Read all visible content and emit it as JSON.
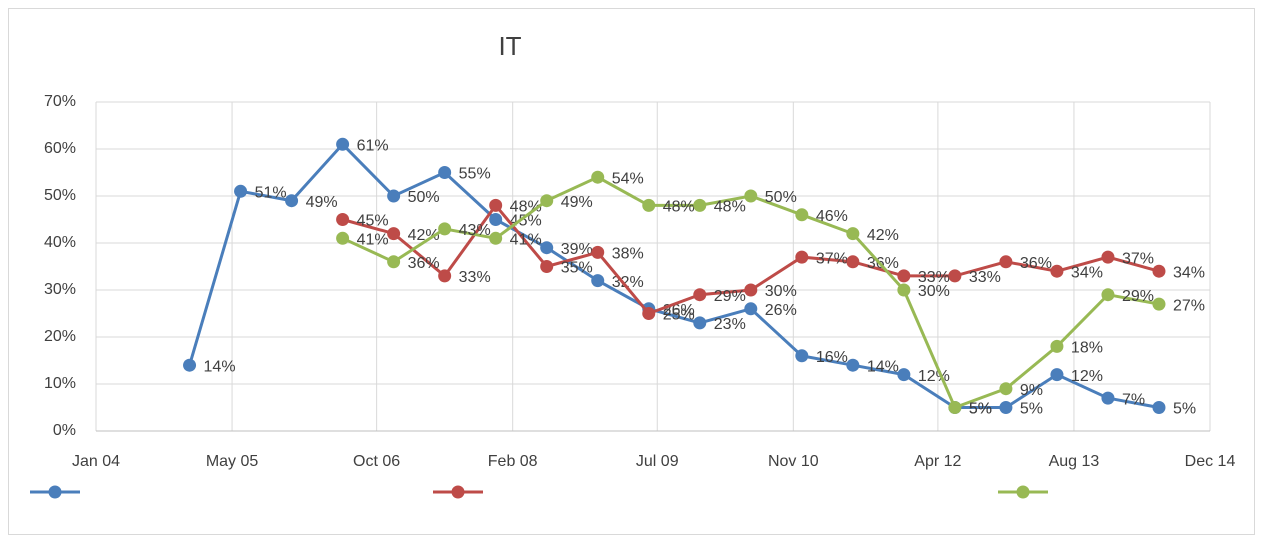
{
  "chart_data": {
    "type": "line",
    "title": "IT",
    "xlim": [
      "2004-01",
      "2014-12"
    ],
    "xticks": [
      {
        "value": "2004-01",
        "label": "Jan 04"
      },
      {
        "value": "2005-05",
        "label": "May 05"
      },
      {
        "value": "2006-10",
        "label": "Oct 06"
      },
      {
        "value": "2008-02",
        "label": "Feb 08"
      },
      {
        "value": "2009-07",
        "label": "Jul 09"
      },
      {
        "value": "2010-11",
        "label": "Nov 10"
      },
      {
        "value": "2012-04",
        "label": "Apr 12"
      },
      {
        "value": "2013-08",
        "label": "Aug 13"
      },
      {
        "value": "2014-12",
        "label": "Dec 14"
      }
    ],
    "ylim": [
      0,
      70
    ],
    "yticks": [
      {
        "value": 0,
        "label": "0%"
      },
      {
        "value": 10,
        "label": "10%"
      },
      {
        "value": 20,
        "label": "20%"
      },
      {
        "value": 30,
        "label": "30%"
      },
      {
        "value": 40,
        "label": "40%"
      },
      {
        "value": 50,
        "label": "50%"
      },
      {
        "value": 60,
        "label": "60%"
      },
      {
        "value": 70,
        "label": "70%"
      }
    ],
    "grid": true,
    "series": [
      {
        "color": "#4a7ebb",
        "x": [
          "2004-12",
          "2005-06",
          "2005-12",
          "2006-06",
          "2006-12",
          "2007-06",
          "2007-12",
          "2008-06",
          "2008-12",
          "2009-06",
          "2009-12",
          "2010-06",
          "2010-12",
          "2011-06",
          "2011-12",
          "2012-06",
          "2012-12",
          "2013-06",
          "2013-12",
          "2014-06"
        ],
        "values": [
          14,
          51,
          49,
          61,
          50,
          55,
          45,
          39,
          32,
          26,
          23,
          26,
          16,
          14,
          12,
          5,
          5,
          12,
          7,
          5
        ],
        "value_labels": [
          "14%",
          "51%",
          "49%",
          "61%",
          "50%",
          "55%",
          "45%",
          "39%",
          "32%",
          "26%",
          "23%",
          "26%",
          "16%",
          "14%",
          "12%",
          "5%",
          "5%",
          "12%",
          "7%",
          "5%"
        ]
      },
      {
        "color": "#be4b48",
        "x": [
          "2006-06",
          "2006-12",
          "2007-06",
          "2007-12",
          "2008-06",
          "2008-12",
          "2009-06",
          "2009-12",
          "2010-06",
          "2010-12",
          "2011-06",
          "2011-12",
          "2012-06",
          "2012-12",
          "2013-06",
          "2013-12",
          "2014-06"
        ],
        "values": [
          45,
          42,
          33,
          48,
          35,
          38,
          25,
          29,
          30,
          37,
          36,
          33,
          33,
          36,
          34,
          37,
          34
        ],
        "value_labels": [
          "45%",
          "42%",
          "33%",
          "48%",
          "35%",
          "38%",
          "25%",
          "29%",
          "30%",
          "37%",
          "36%",
          "33%",
          "33%",
          "36%",
          "34%",
          "37%",
          "34%"
        ]
      },
      {
        "color": "#98b954",
        "x": [
          "2006-06",
          "2006-12",
          "2007-06",
          "2007-12",
          "2008-06",
          "2008-12",
          "2009-06",
          "2009-12",
          "2010-06",
          "2010-12",
          "2011-06",
          "2011-12",
          "2012-06",
          "2012-12",
          "2013-06",
          "2013-12",
          "2014-06"
        ],
        "values": [
          41,
          36,
          43,
          41,
          49,
          54,
          48,
          48,
          50,
          46,
          42,
          30,
          5,
          9,
          18,
          29,
          27
        ],
        "value_labels": [
          "41%",
          "36%",
          "43%",
          "41%",
          "49%",
          "54%",
          "48%",
          "48%",
          "50%",
          "46%",
          "42%",
          "30%",
          "5%",
          "9%",
          "18%",
          "29%",
          "27%"
        ]
      }
    ]
  }
}
